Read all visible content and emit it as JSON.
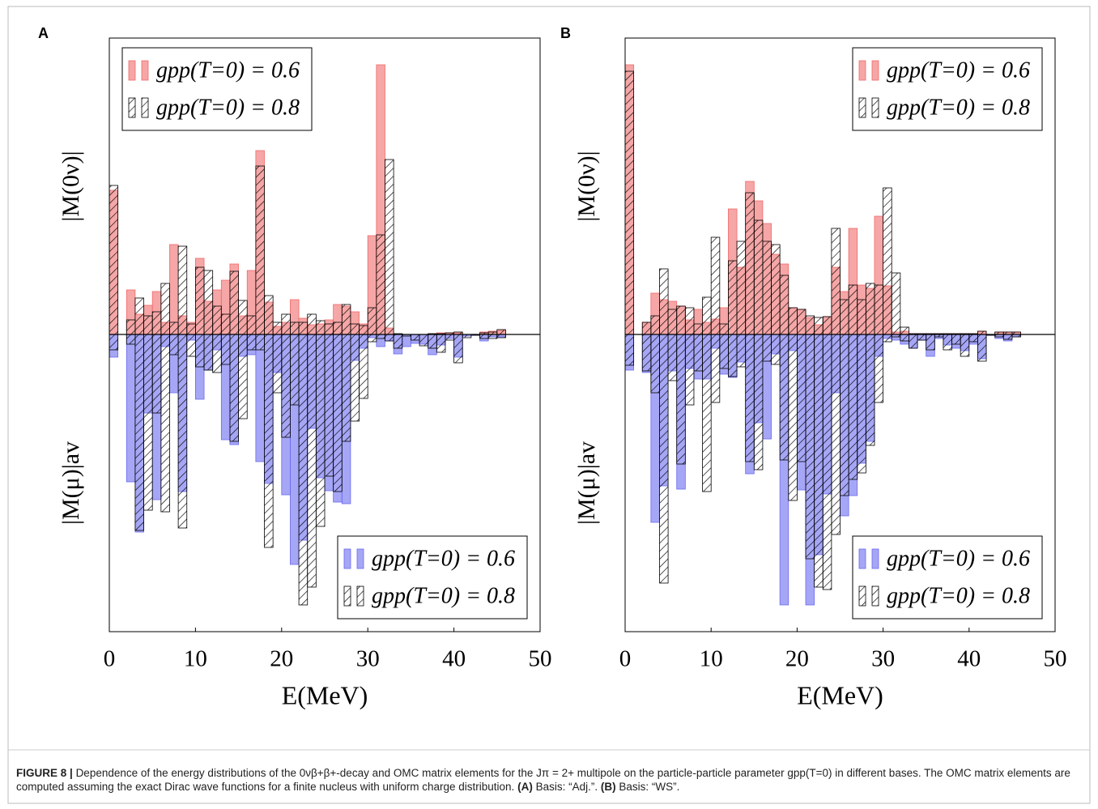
{
  "chart_data": [
    {
      "type": "histogram",
      "panel": "A",
      "xlabel": "E(MeV)",
      "ylabel_upper": "|M(0ν)|",
      "ylabel_lower": "|M(μ)|av",
      "xlim": [
        0,
        50
      ],
      "xticks": [
        0,
        10,
        20,
        30,
        40,
        50
      ],
      "ylim": [
        -36.7,
        36.6
      ],
      "legend": [
        "upper left",
        "lower right"
      ],
      "bins": [
        0,
        1,
        2,
        3,
        4,
        5,
        6,
        7,
        8,
        9,
        10,
        11,
        12,
        13,
        14,
        15,
        16,
        17,
        18,
        19,
        20,
        21,
        22,
        23,
        24,
        25,
        26,
        27,
        28,
        29,
        30,
        31,
        32,
        33,
        34,
        35,
        36,
        37,
        38,
        39,
        40,
        41,
        42,
        43,
        44,
        45,
        46
      ],
      "series": [
        {
          "name": "gpp(T=0) = 0.6",
          "color": "#f06a6a",
          "hatch": false,
          "values": [
            17.8,
            0,
            5.5,
            2.5,
            3.6,
            5.3,
            1.5,
            11.1,
            2.3,
            1.5,
            9.4,
            4.1,
            5.5,
            6.7,
            8.7,
            2.3,
            7.9,
            22.7,
            4.0,
            1.0,
            1.5,
            4.3,
            2.0,
            1.2,
            1.3,
            1.8,
            3.7,
            3.5,
            2.8,
            1.3,
            12.2,
            33.3,
            0.8,
            0,
            0,
            0,
            0,
            0.1,
            0.2,
            0.2,
            0.2,
            0,
            0,
            0.3,
            0.4,
            0.5
          ]
        },
        {
          "name": "gpp(T=0) = 0.8",
          "color": "#000000",
          "hatch": true,
          "values": [
            18.4,
            0,
            1.8,
            4.5,
            2.3,
            2.8,
            6.3,
            1.5,
            10.9,
            1.3,
            8.3,
            7.9,
            3.5,
            2.5,
            7.8,
            4.2,
            2.3,
            20.8,
            4.8,
            1.5,
            2.5,
            1.5,
            1.5,
            2.5,
            1.7,
            1.3,
            1.5,
            3.7,
            1.3,
            1.1,
            3.3,
            12.3,
            21.6,
            0.1,
            0,
            0,
            0,
            0.1,
            0.1,
            0.2,
            0.3,
            0,
            0,
            0.2,
            0.3,
            0.6
          ]
        },
        {
          "name": "gpp(T=0) = 0.6",
          "color": "#6a6af0",
          "hatch": false,
          "values": [
            -2.8,
            0,
            -18.2,
            -24.4,
            -9.7,
            -20.4,
            -1.5,
            -7.2,
            -19.4,
            -0.7,
            -8.0,
            -4.4,
            -1.9,
            -13.0,
            -13.6,
            -2.7,
            -2.5,
            -15.7,
            -18.4,
            -4.7,
            -19.8,
            -28.4,
            -25.4,
            -11.6,
            -17.7,
            -19.3,
            -20.7,
            -20.9,
            -3.2,
            -1.7,
            -0.4,
            -1.5,
            -0.8,
            -2.4,
            -1.5,
            -1.1,
            -1.2,
            -2.5,
            -1.3,
            -0.5,
            -2.8,
            -0.2,
            -0.1,
            -0.8,
            -0.3,
            -0.3
          ]
        },
        {
          "name": "gpp(T=0) = 0.8",
          "color": "#000000",
          "hatch": true,
          "values": [
            -1.9,
            0,
            -1.2,
            -24.2,
            -21.7,
            -9.7,
            -21.9,
            -2.5,
            -23.9,
            -2.7,
            -4.0,
            -4.4,
            -4.7,
            -3.7,
            -13.2,
            -10.4,
            -1.9,
            -1.9,
            -26.3,
            -7.2,
            -12.7,
            -8.7,
            -33.4,
            -31.2,
            -23.7,
            -17.5,
            -19.4,
            -13.2,
            -10.7,
            -7.9,
            -0.9,
            -0.5,
            -0.8,
            -1.7,
            -0.2,
            -0.7,
            -1.4,
            -1.7,
            -2.2,
            -0.7,
            -3.5,
            -0.4,
            -0.1,
            -0.5,
            -0.5,
            -0.4
          ]
        }
      ]
    },
    {
      "type": "histogram",
      "panel": "B",
      "xlabel": "E(MeV)",
      "ylabel_upper": "|M(0ν)|",
      "ylabel_lower": "|M(μ)|av",
      "xlim": [
        0,
        50
      ],
      "xticks": [
        0,
        10,
        20,
        30,
        40,
        50
      ],
      "ylim": [
        -36.7,
        36.6
      ],
      "legend": [
        "upper right",
        "lower right"
      ],
      "bins": [
        0,
        1,
        2,
        3,
        4,
        5,
        6,
        7,
        8,
        9,
        10,
        11,
        12,
        13,
        14,
        15,
        16,
        17,
        18,
        19,
        20,
        21,
        22,
        23,
        24,
        25,
        26,
        27,
        28,
        29,
        30,
        31,
        32,
        33,
        34,
        35,
        36,
        37,
        38,
        39,
        40,
        41,
        42,
        43,
        44,
        45,
        46
      ],
      "series": [
        {
          "name": "gpp(T=0) = 0.6",
          "color": "#f06a6a",
          "hatch": false,
          "values": [
            33.3,
            0,
            1.5,
            5.1,
            4.3,
            4.1,
            3.5,
            1.8,
            3.1,
            1.5,
            1.9,
            3.3,
            15.5,
            8.3,
            18.9,
            16.5,
            13.7,
            9.9,
            8.7,
            3.3,
            3.1,
            2.1,
            1.2,
            2.2,
            8.3,
            5.3,
            13.1,
            6.1,
            5.7,
            14.6,
            6.0,
            0.3,
            0.4,
            0.1,
            0.1,
            0.1,
            0.1,
            0.1,
            0.1,
            0.1,
            0.1,
            0.4,
            0,
            0.3,
            0.3,
            0.3
          ]
        },
        {
          "name": "gpp(T=0) = 0.8",
          "color": "#000000",
          "hatch": true,
          "values": [
            32.5,
            0,
            1.5,
            2.3,
            8.1,
            3.1,
            3.5,
            3.3,
            1.3,
            4.6,
            12.0,
            1.3,
            9.1,
            11.5,
            17.5,
            14.1,
            11.5,
            11.1,
            7.3,
            3.3,
            3.1,
            2.3,
            2.1,
            2.2,
            13.1,
            4.3,
            6.1,
            4.3,
            6.3,
            6.1,
            18.1,
            7.6,
            0.9,
            0.1,
            0.1,
            0.1,
            0.1,
            0.1,
            0.1,
            0.1,
            0.1,
            0.4,
            0,
            0.3,
            0.3,
            0.3
          ]
        },
        {
          "name": "gpp(T=0) = 0.6",
          "color": "#6a6af0",
          "hatch": false,
          "values": [
            -4.4,
            0,
            -4.7,
            -23.2,
            -18.7,
            -4.5,
            -19.1,
            -4.2,
            -5.5,
            -5.5,
            -1.7,
            -4.9,
            -5.3,
            -3.4,
            -17.2,
            -10.9,
            -12.9,
            -2.4,
            -33.4,
            -2.0,
            -19.2,
            -33.4,
            -27.2,
            -19.7,
            -7.2,
            -22.4,
            -19.9,
            -15.9,
            -13.2,
            -2.7,
            -0.5,
            -0.7,
            -1.2,
            -1.7,
            -0.7,
            -2.7,
            -0.5,
            -1.3,
            -1.7,
            -2.0,
            -1.2,
            -3.0,
            -0.1,
            -0.5,
            -0.8,
            -0.3
          ]
        },
        {
          "name": "gpp(T=0) = 0.8",
          "color": "#000000",
          "hatch": true,
          "values": [
            -3.8,
            0,
            -4.5,
            -7.2,
            -30.7,
            -5.7,
            -16.0,
            -8.7,
            -4.5,
            -19.4,
            -8.4,
            -4.2,
            -5.2,
            -4.0,
            -15.7,
            -16.7,
            -3.3,
            -3.7,
            -15.5,
            -20.5,
            -15.7,
            -27.7,
            -31.2,
            -31.5,
            -24.7,
            -19.9,
            -17.9,
            -17.1,
            -13.7,
            -8.4,
            -0.9,
            -0.3,
            -0.8,
            -1.7,
            -0.7,
            -1.9,
            -0.3,
            -1.9,
            -1.2,
            -2.7,
            -0.9,
            -3.3,
            -0.1,
            -0.3,
            -0.6,
            -0.3
          ]
        }
      ]
    }
  ],
  "caption": {
    "label": "FIGURE 8 |",
    "text": "Dependence of the energy distributions of the 0νβ+β+-decay and OMC matrix elements for the Jπ = 2+ multipole on the particle-particle parameter gpp(T=0) in different bases. The OMC matrix elements are computed assuming the exact Dirac wave functions for a finite nucleus with uniform charge distribution.",
    "a_label": "(A)",
    "a_text": "Basis: “Adj.”.",
    "b_label": "(B)",
    "b_text": "Basis: “WS”."
  }
}
